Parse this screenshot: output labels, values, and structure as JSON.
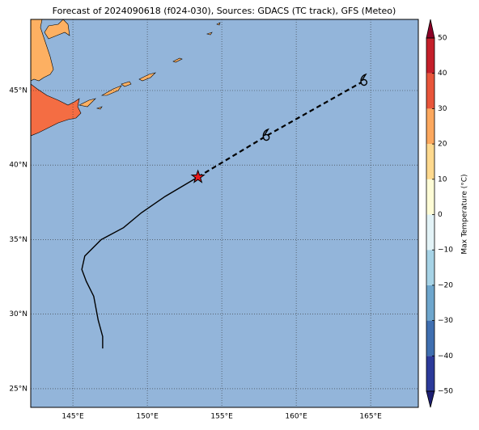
{
  "chart_data": {
    "type": "map",
    "title": "Forecast of 2024090618 (f024-030), Sources: GDACS (TC track), GFS (Meteo)",
    "xlim": [
      142.17,
      168.2
    ],
    "ylim": [
      23.75,
      49.77
    ],
    "xticks": [
      {
        "value": 145,
        "label": "145°E"
      },
      {
        "value": 150,
        "label": "150°E"
      },
      {
        "value": 155,
        "label": "155°E"
      },
      {
        "value": 160,
        "label": "160°E"
      },
      {
        "value": 165,
        "label": "165°E"
      }
    ],
    "yticks": [
      {
        "value": 25,
        "label": "25°N"
      },
      {
        "value": 30,
        "label": "30°N"
      },
      {
        "value": 35,
        "label": "35°N"
      },
      {
        "value": 40,
        "label": "40°N"
      },
      {
        "value": 45,
        "label": "45°N"
      }
    ],
    "grid": true,
    "ocean_color": "#93b5da",
    "track": {
      "observed": {
        "lon": [
          147.0,
          147.0,
          146.7,
          146.4,
          145.9,
          145.6,
          145.8,
          146.9,
          148.4,
          149.6,
          151.2,
          153.4
        ],
        "lat": [
          27.7,
          28.5,
          29.6,
          31.2,
          32.2,
          33.0,
          33.9,
          35.0,
          35.8,
          36.8,
          37.9,
          39.2
        ],
        "color": "#000000"
      },
      "forecast": {
        "lon": [
          153.4,
          158.0,
          164.56
        ],
        "lat": [
          39.2,
          41.96,
          45.65
        ],
        "color": "#000000"
      },
      "position_color": "#e8191c"
    },
    "colorbar": {
      "label": "Max Temperature (°C)",
      "levels": [
        -50,
        -40,
        -30,
        -20,
        -10,
        0,
        10,
        20,
        30,
        40,
        50
      ],
      "colors": [
        "#2c3a9a",
        "#3f6fb0",
        "#6ea6cd",
        "#a6d3e6",
        "#e3f3f7",
        "#fefcd6",
        "#fed98e",
        "#fca85e",
        "#e8553a",
        "#c41f2a"
      ],
      "extend_colors": [
        "#1d1f73",
        "#8b0026"
      ],
      "ticks": [
        {
          "value": -50,
          "label": "−50"
        },
        {
          "value": -40,
          "label": "−40"
        },
        {
          "value": -30,
          "label": "−30"
        },
        {
          "value": -20,
          "label": "−20"
        },
        {
          "value": -10,
          "label": "−10"
        },
        0,
        10,
        20,
        30,
        40,
        50
      ]
    }
  }
}
